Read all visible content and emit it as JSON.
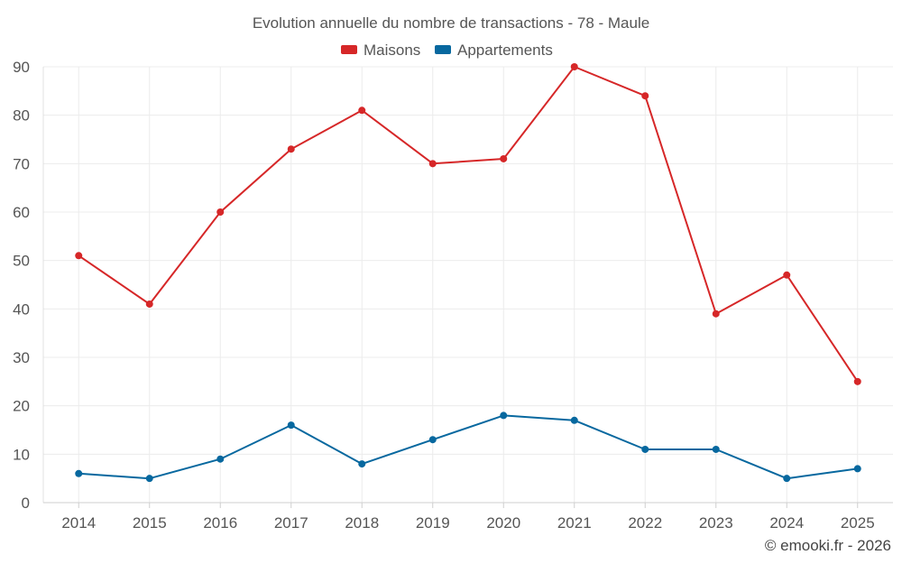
{
  "chart_data": {
    "type": "line",
    "title": "Evolution annuelle du nombre de transactions - 78 - Maule",
    "xlabel": "",
    "ylabel": "",
    "categories": [
      "2014",
      "2015",
      "2016",
      "2017",
      "2018",
      "2019",
      "2020",
      "2021",
      "2022",
      "2023",
      "2024",
      "2025"
    ],
    "ylim": [
      0,
      90
    ],
    "yticks": [
      0,
      10,
      20,
      30,
      40,
      50,
      60,
      70,
      80,
      90
    ],
    "grid": true,
    "legend_position": "top-center",
    "series": [
      {
        "name": "Maisons",
        "color": "#d62728",
        "values": [
          51,
          41,
          60,
          73,
          81,
          70,
          71,
          90,
          84,
          39,
          47,
          25
        ]
      },
      {
        "name": "Appartements",
        "color": "#07689f",
        "values": [
          6,
          5,
          9,
          16,
          8,
          13,
          18,
          17,
          11,
          11,
          5,
          7
        ]
      }
    ],
    "credit": "© emooki.fr - 2026"
  }
}
